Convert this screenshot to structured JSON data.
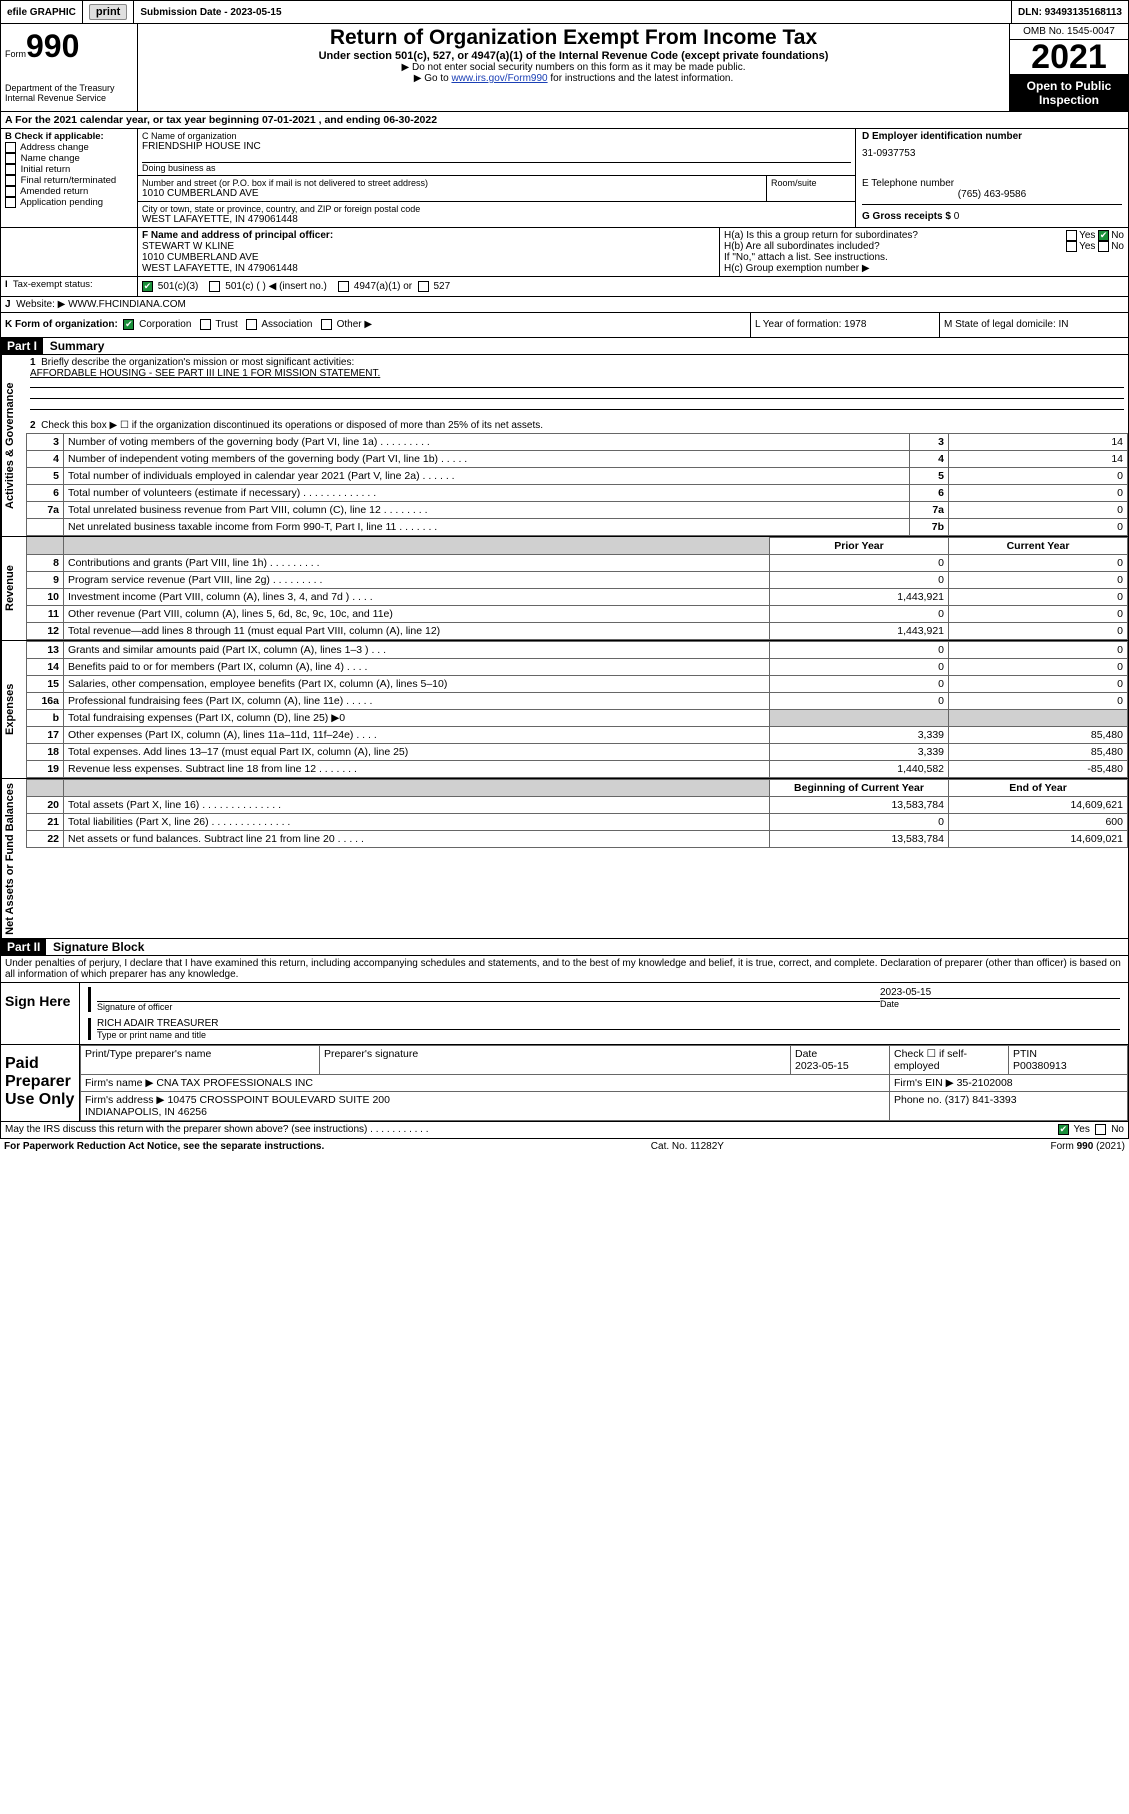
{
  "colors": {
    "link": "#1a3fb5",
    "checked": "#1a8f3a",
    "shade": "#d0d0d0",
    "black": "#000000",
    "white": "#ffffff"
  },
  "topbar": {
    "efile": "efile GRAPHIC",
    "print": "print",
    "sub_label": "Submission Date - 2023-05-15",
    "dln_label": "DLN: 93493135168113"
  },
  "header": {
    "form_word": "Form",
    "form_no": "990",
    "dept": "Department of the Treasury Internal Revenue Service",
    "title": "Return of Organization Exempt From Income Tax",
    "sub": "Under section 501(c), 527, or 4947(a)(1) of the Internal Revenue Code (except private foundations)",
    "line1": "▶ Do not enter social security numbers on this form as it may be made public.",
    "line2_pre": "▶ Go to ",
    "line2_link": "www.irs.gov/Form990",
    "line2_post": " for instructions and the latest information.",
    "omb": "OMB No. 1545-0047",
    "year": "2021",
    "open": "Open to Public Inspection"
  },
  "A": {
    "label": "A For the 2021 calendar year, or tax year beginning ",
    "begin": "07-01-2021",
    "mid": " , and ending ",
    "end": "06-30-2022"
  },
  "B": {
    "hdr": "B Check if applicable:",
    "items": [
      "Address change",
      "Name change",
      "Initial return",
      "Final return/terminated",
      "Amended return",
      "Application pending"
    ]
  },
  "C": {
    "name_lbl": "C Name of organization",
    "name": "FRIENDSHIP HOUSE INC",
    "dba_lbl": "Doing business as",
    "addr_lbl": "Number and street (or P.O. box if mail is not delivered to street address)",
    "room_lbl": "Room/suite",
    "addr": "1010 CUMBERLAND AVE",
    "city_lbl": "City or town, state or province, country, and ZIP or foreign postal code",
    "city": "WEST LAFAYETTE, IN  479061448"
  },
  "D": {
    "lbl": "D Employer identification number",
    "val": "31-0937753"
  },
  "E": {
    "lbl": "E Telephone number",
    "val": "(765) 463-9586"
  },
  "G": {
    "lbl": "G Gross receipts $ ",
    "val": "0"
  },
  "F": {
    "lbl": "F  Name and address of principal officer:",
    "name": "STEWART W KLINE",
    "addr1": "1010 CUMBERLAND AVE",
    "addr2": "WEST LAFAYETTE, IN  479061448"
  },
  "H": {
    "a": "H(a)  Is this a group return for subordinates?",
    "b": "H(b)  Are all subordinates included?",
    "b_note": "If \"No,\" attach a list. See instructions.",
    "c": "H(c)  Group exemption number ▶",
    "yes": "Yes",
    "no": "No"
  },
  "I": {
    "lbl": "Tax-exempt status:",
    "opts": [
      "501(c)(3)",
      "501(c) (  ) ◀ (insert no.)",
      "4947(a)(1) or",
      "527"
    ]
  },
  "J": {
    "lbl": "Website: ▶",
    "val": "WWW.FHCINDIANA.COM"
  },
  "K": {
    "lbl": "K Form of organization:",
    "opts": [
      "Corporation",
      "Trust",
      "Association",
      "Other ▶"
    ]
  },
  "L": {
    "lbl": "L Year of formation: ",
    "val": "1978"
  },
  "M": {
    "lbl": "M State of legal domicile: ",
    "val": "IN"
  },
  "partI": {
    "hdr": "Part I",
    "title": "Summary",
    "q1_lbl": "1",
    "q1": "Briefly describe the organization's mission or most significant activities:",
    "q1_ans": "AFFORDABLE HOUSING - SEE PART III LINE 1 FOR MISSION STATEMENT.",
    "q2_lbl": "2",
    "q2": "Check this box ▶ ☐  if the organization discontinued its operations or disposed of more than 25% of its net assets.",
    "rows_gov": [
      {
        "n": "3",
        "t": "Number of voting members of the governing body (Part VI, line 1a)   .    .    .    .    .    .    .    .    .",
        "box": "3",
        "v": "14"
      },
      {
        "n": "4",
        "t": "Number of independent voting members of the governing body (Part VI, line 1b)   .    .    .    .    .",
        "box": "4",
        "v": "14"
      },
      {
        "n": "5",
        "t": "Total number of individuals employed in calendar year 2021 (Part V, line 2a)   .    .    .    .    .    .",
        "box": "5",
        "v": "0"
      },
      {
        "n": "6",
        "t": "Total number of volunteers (estimate if necessary)   .    .    .    .    .    .    .    .    .    .    .    .    .",
        "box": "6",
        "v": "0"
      },
      {
        "n": "7a",
        "t": "Total unrelated business revenue from Part VIII, column (C), line 12   .    .    .    .    .    .    .    .",
        "box": "7a",
        "v": "0"
      },
      {
        "n": "",
        "t": "Net unrelated business taxable income from Form 990-T, Part I, line 11   .    .    .    .    .    .    .",
        "box": "7b",
        "v": "0"
      }
    ],
    "col_hdr_prior": "Prior Year",
    "col_hdr_curr": "Current Year",
    "rows_rev": [
      {
        "n": "8",
        "t": "Contributions and grants (Part VIII, line 1h)   .    .    .    .    .    .    .    .    .",
        "p": "0",
        "c": "0"
      },
      {
        "n": "9",
        "t": "Program service revenue (Part VIII, line 2g)   .    .    .    .    .    .    .    .    .",
        "p": "0",
        "c": "0"
      },
      {
        "n": "10",
        "t": "Investment income (Part VIII, column (A), lines 3, 4, and 7d )   .    .    .    .",
        "p": "1,443,921",
        "c": "0"
      },
      {
        "n": "11",
        "t": "Other revenue (Part VIII, column (A), lines 5, 6d, 8c, 9c, 10c, and 11e)",
        "p": "0",
        "c": "0"
      },
      {
        "n": "12",
        "t": "Total revenue—add lines 8 through 11 (must equal Part VIII, column (A), line 12)",
        "p": "1,443,921",
        "c": "0"
      }
    ],
    "rows_exp": [
      {
        "n": "13",
        "t": "Grants and similar amounts paid (Part IX, column (A), lines 1–3 )   .    .    .",
        "p": "0",
        "c": "0"
      },
      {
        "n": "14",
        "t": "Benefits paid to or for members (Part IX, column (A), line 4)   .    .    .    .",
        "p": "0",
        "c": "0"
      },
      {
        "n": "15",
        "t": "Salaries, other compensation, employee benefits (Part IX, column (A), lines 5–10)",
        "p": "0",
        "c": "0"
      },
      {
        "n": "16a",
        "t": "Professional fundraising fees (Part IX, column (A), line 11e)   .    .    .    .    .",
        "p": "0",
        "c": "0"
      },
      {
        "n": "b",
        "t": "Total fundraising expenses (Part IX, column (D), line 25) ▶0",
        "p": "",
        "c": "",
        "shade": true
      },
      {
        "n": "17",
        "t": "Other expenses (Part IX, column (A), lines 11a–11d, 11f–24e)   .    .    .    .",
        "p": "3,339",
        "c": "85,480"
      },
      {
        "n": "18",
        "t": "Total expenses. Add lines 13–17 (must equal Part IX, column (A), line 25)",
        "p": "3,339",
        "c": "85,480"
      },
      {
        "n": "19",
        "t": "Revenue less expenses. Subtract line 18 from line 12   .    .    .    .    .    .    .",
        "p": "1,440,582",
        "c": "-85,480"
      }
    ],
    "col_hdr_beg": "Beginning of Current Year",
    "col_hdr_end": "End of Year",
    "rows_net": [
      {
        "n": "20",
        "t": "Total assets (Part X, line 16)   .    .    .    .    .    .    .    .    .    .    .    .    .    .",
        "p": "13,583,784",
        "c": "14,609,621"
      },
      {
        "n": "21",
        "t": "Total liabilities (Part X, line 26)   .    .    .    .    .    .    .    .    .    .    .    .    .    .",
        "p": "0",
        "c": "600"
      },
      {
        "n": "22",
        "t": "Net assets or fund balances. Subtract line 21 from line 20   .    .    .    .    .",
        "p": "13,583,784",
        "c": "14,609,021"
      }
    ]
  },
  "vlabels": {
    "gov": "Activities & Governance",
    "rev": "Revenue",
    "exp": "Expenses",
    "net": "Net Assets or Fund Balances"
  },
  "partII": {
    "hdr": "Part II",
    "title": "Signature Block",
    "decl": "Under penalties of perjury, I declare that I have examined this return, including accompanying schedules and statements, and to the best of my knowledge and belief, it is true, correct, and complete. Declaration of preparer (other than officer) is based on all information of which preparer has any knowledge."
  },
  "sign": {
    "here": "Sign Here",
    "sig_lbl": "Signature of officer",
    "date_lbl": "Date",
    "date_val": "2023-05-15",
    "name": "RICH ADAIR TREASURER",
    "name_lbl": "Type or print name and title"
  },
  "paid": {
    "title": "Paid Preparer Use Only",
    "h_name": "Print/Type preparer's name",
    "h_sig": "Preparer's signature",
    "h_date": "Date",
    "date": "2023-05-15",
    "h_check": "Check ☐ if self-employed",
    "h_ptin": "PTIN",
    "ptin": "P00380913",
    "firm_lbl": "Firm's name    ▶",
    "firm": "CNA TAX PROFESSIONALS INC",
    "ein_lbl": "Firm's EIN ▶",
    "ein": "35-2102008",
    "addr_lbl": "Firm's address ▶",
    "addr": "10475 CROSSPOINT BOULEVARD SUITE 200\nINDIANAPOLIS, IN  46256",
    "phone_lbl": "Phone no. ",
    "phone": "(317) 841-3393"
  },
  "footer": {
    "q": "May the IRS discuss this return with the preparer shown above? (see instructions)   .    .    .    .    .    .    .    .    .    .    .",
    "yes": "Yes",
    "no": "No",
    "pra": "For Paperwork Reduction Act Notice, see the separate instructions.",
    "cat": "Cat. No. 11282Y",
    "form": "Form 990 (2021)"
  }
}
